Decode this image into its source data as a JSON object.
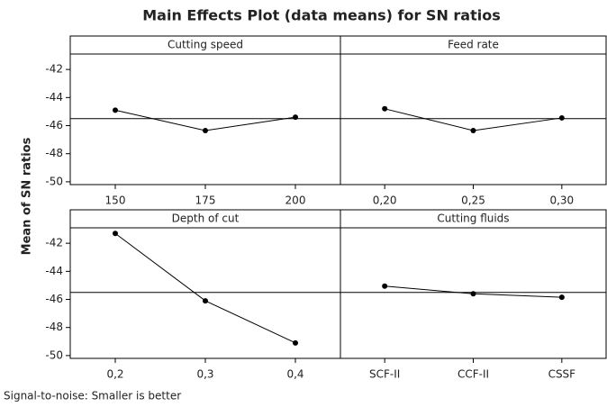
{
  "title": "Main Effects Plot (data means) for SN ratios",
  "ylabel": "Mean of SN ratios",
  "note": "Signal-to-noise: Smaller is better",
  "chart_data": [
    {
      "type": "line",
      "title": "Cutting speed",
      "categories": [
        "150",
        "175",
        "200"
      ],
      "values": [
        -44.9,
        -46.35,
        -45.4
      ],
      "reference_line": -45.5,
      "ylim": [
        -50.2,
        -40.9
      ],
      "yticks": [
        -42,
        -44,
        -46,
        -48,
        -50
      ],
      "color": "#000000"
    },
    {
      "type": "line",
      "title": "Feed rate",
      "categories": [
        "0,20",
        "0,25",
        "0,30"
      ],
      "values": [
        -44.8,
        -46.35,
        -45.45
      ],
      "reference_line": -45.5,
      "ylim": [
        -50.2,
        -40.9
      ],
      "color": "#000000"
    },
    {
      "type": "line",
      "title": "Depth of cut",
      "categories": [
        "0,2",
        "0,3",
        "0,4"
      ],
      "values": [
        -41.3,
        -46.1,
        -49.1
      ],
      "reference_line": -45.5,
      "ylim": [
        -50.2,
        -40.9
      ],
      "yticks": [
        -42,
        -44,
        -46,
        -48,
        -50
      ],
      "color": "#000000"
    },
    {
      "type": "line",
      "title": "Cutting fluids",
      "categories": [
        "SCF-II",
        "CCF-II",
        "CSSF"
      ],
      "values": [
        -45.05,
        -45.6,
        -45.85
      ],
      "reference_line": -45.5,
      "ylim": [
        -50.2,
        -40.9
      ],
      "color": "#000000"
    }
  ]
}
